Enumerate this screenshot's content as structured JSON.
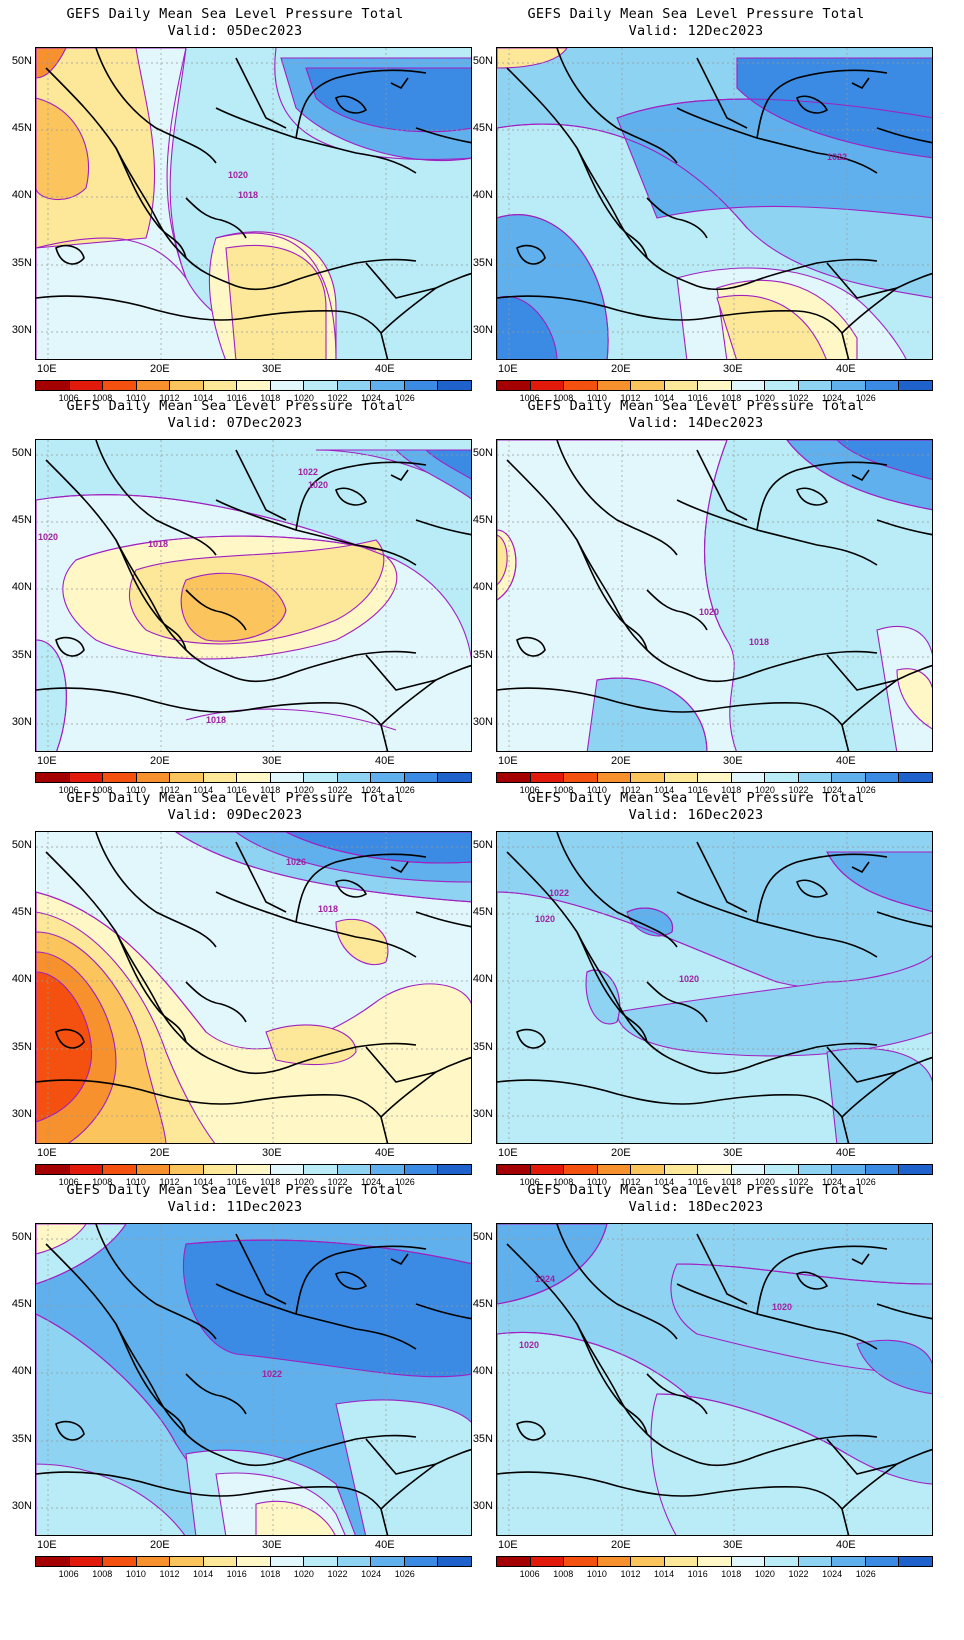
{
  "panels": [
    {
      "title": "GEFS Daily Mean Sea Level Pressure Total",
      "valid": "Valid: 05Dec2023",
      "labels": [
        "1020",
        "1018"
      ]
    },
    {
      "title": "GEFS Daily Mean Sea Level Pressure Total",
      "valid": "Valid: 12Dec2023",
      "labels": [
        "1022"
      ]
    },
    {
      "title": "GEFS Daily Mean Sea Level Pressure Total",
      "valid": "Valid: 07Dec2023",
      "labels": [
        "1022",
        "1020",
        "1020",
        "1018",
        "1018"
      ]
    },
    {
      "title": "GEFS Daily Mean Sea Level Pressure Total",
      "valid": "Valid: 14Dec2023",
      "labels": [
        "1020",
        "1018"
      ]
    },
    {
      "title": "GEFS Daily Mean Sea Level Pressure Total",
      "valid": "Valid: 09Dec2023",
      "labels": [
        "1026",
        "1018"
      ]
    },
    {
      "title": "GEFS Daily Mean Sea Level Pressure Total",
      "valid": "Valid: 16Dec2023",
      "labels": [
        "1022",
        "1020",
        "1020"
      ]
    },
    {
      "title": "GEFS Daily Mean Sea Level Pressure Total",
      "valid": "Valid: 11Dec2023",
      "labels": [
        "1022"
      ]
    },
    {
      "title": "GEFS Daily Mean Sea Level Pressure Total",
      "valid": "Valid: 18Dec2023",
      "labels": [
        "1024",
        "1020",
        "1020"
      ]
    }
  ],
  "axes": {
    "lat_labels": [
      "50N",
      "45N",
      "40N",
      "35N",
      "30N"
    ],
    "lon_labels": [
      "10E",
      "20E",
      "30E",
      "40E"
    ]
  },
  "colorbar": {
    "levels": [
      "1006",
      "1008",
      "1010",
      "1012",
      "1014",
      "1016",
      "1018",
      "1020",
      "1022",
      "1024",
      "1026"
    ],
    "colors": [
      "#a50000",
      "#e11a0c",
      "#f4500f",
      "#f7912d",
      "#fbc45d",
      "#fde89a",
      "#fff8c6",
      "#e2f7fb",
      "#b9ecf7",
      "#8fd3f3",
      "#5fb0ec",
      "#3b8be4",
      "#1f62cc"
    ]
  }
}
